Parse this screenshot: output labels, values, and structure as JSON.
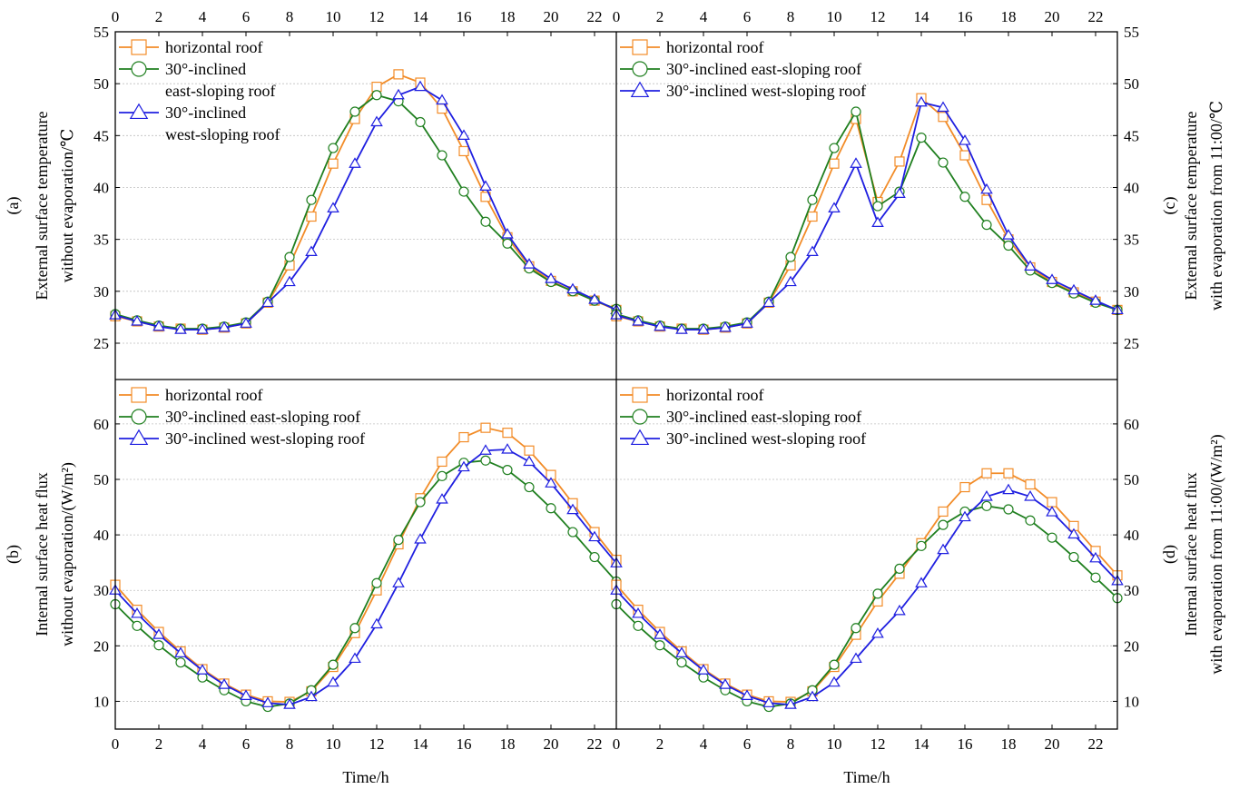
{
  "colors": {
    "horizontal": "#F28C28",
    "east": "#1F7F1F",
    "west": "#1F1FE0",
    "grid": "#BFBFBF"
  },
  "xlabel": "Time/h",
  "chart_data": [
    {
      "id": "a",
      "type": "line",
      "ylabel_tag": "(a)",
      "ylabel_lines": [
        "External surface temperature",
        "without evaporation/℃"
      ],
      "xlim": [
        0,
        23
      ],
      "ylim": [
        21.5,
        55
      ],
      "xticks": [
        "0",
        "2",
        "4",
        "6",
        "8",
        "10",
        "12",
        "14",
        "16",
        "18",
        "20",
        "22"
      ],
      "yticks": [
        "25",
        "30",
        "35",
        "40",
        "45",
        "50",
        "55"
      ],
      "legend_position": "top-left",
      "x": [
        0,
        1,
        2,
        3,
        4,
        5,
        6,
        7,
        8,
        9,
        10,
        11,
        12,
        13,
        14,
        15,
        16,
        17,
        18,
        19,
        20,
        21,
        22,
        23
      ],
      "series": [
        {
          "key": "horizontal",
          "name_lines": [
            "horizontal roof"
          ],
          "values": [
            27.6,
            27.1,
            26.6,
            26.4,
            26.3,
            26.5,
            26.9,
            28.9,
            32.5,
            37.2,
            42.3,
            46.6,
            49.7,
            50.9,
            50.1,
            47.6,
            43.5,
            39.1,
            35.2,
            32.4,
            31.0,
            30.0,
            29.1,
            28.2
          ]
        },
        {
          "key": "east",
          "name_lines": [
            "30°-inclined",
            "east-sloping roof"
          ],
          "values": [
            27.8,
            27.2,
            26.7,
            26.4,
            26.4,
            26.6,
            27.0,
            29.0,
            33.3,
            38.8,
            43.8,
            47.3,
            48.9,
            48.3,
            46.3,
            43.1,
            39.6,
            36.7,
            34.6,
            32.2,
            30.9,
            30.0,
            29.1,
            28.3
          ]
        },
        {
          "key": "west",
          "name_lines": [
            "30°-inclined",
            "west-sloping roof"
          ],
          "values": [
            27.7,
            27.1,
            26.6,
            26.3,
            26.3,
            26.5,
            26.9,
            28.9,
            30.9,
            33.8,
            38.0,
            42.3,
            46.3,
            48.9,
            49.7,
            48.4,
            45.0,
            40.1,
            35.5,
            32.6,
            31.2,
            30.2,
            29.2,
            28.2
          ]
        }
      ]
    },
    {
      "id": "c",
      "type": "line",
      "ylabel_tag": "(c)",
      "ylabel_lines": [
        "External surface temperature",
        "with evaporation from 11:00/℃"
      ],
      "xlim": [
        0,
        23
      ],
      "ylim": [
        21.5,
        55
      ],
      "xticks": [
        "0",
        "2",
        "4",
        "6",
        "8",
        "10",
        "12",
        "14",
        "16",
        "18",
        "20",
        "22"
      ],
      "yticks": [
        "25",
        "30",
        "35",
        "40",
        "45",
        "50",
        "55"
      ],
      "legend_position": "top-left",
      "x": [
        0,
        1,
        2,
        3,
        4,
        5,
        6,
        7,
        8,
        9,
        10,
        11,
        12,
        13,
        14,
        15,
        16,
        17,
        18,
        19,
        20,
        21,
        22,
        23
      ],
      "series": [
        {
          "key": "horizontal",
          "name_lines": [
            "horizontal roof"
          ],
          "values": [
            27.6,
            27.1,
            26.6,
            26.4,
            26.3,
            26.5,
            26.9,
            28.9,
            32.5,
            37.2,
            42.3,
            46.6,
            38.6,
            42.5,
            48.6,
            46.8,
            43.1,
            38.8,
            35.0,
            32.3,
            30.9,
            29.9,
            29.0,
            28.2
          ]
        },
        {
          "key": "east",
          "name_lines": [
            "30°-inclined east-sloping roof"
          ],
          "values": [
            27.8,
            27.2,
            26.7,
            26.4,
            26.4,
            26.6,
            27.0,
            29.0,
            33.3,
            38.8,
            43.8,
            47.3,
            38.2,
            39.6,
            44.8,
            42.4,
            39.1,
            36.4,
            34.4,
            32.0,
            30.8,
            29.8,
            28.9,
            28.2
          ]
        },
        {
          "key": "west",
          "name_lines": [
            "30°-inclined west-sloping roof"
          ],
          "values": [
            27.7,
            27.1,
            26.6,
            26.3,
            26.3,
            26.5,
            26.9,
            28.9,
            30.9,
            33.8,
            38.0,
            42.3,
            36.6,
            39.4,
            48.2,
            47.7,
            44.5,
            39.8,
            35.4,
            32.4,
            31.1,
            30.1,
            29.1,
            28.2
          ]
        }
      ]
    },
    {
      "id": "b",
      "type": "line",
      "ylabel_tag": "(b)",
      "ylabel_lines": [
        "Internal surface heat flux",
        "without evaporation/(W/m²)"
      ],
      "xlim": [
        0,
        23
      ],
      "ylim": [
        5,
        68
      ],
      "xticks": [
        "0",
        "2",
        "4",
        "6",
        "8",
        "10",
        "12",
        "14",
        "16",
        "18",
        "20",
        "22"
      ],
      "yticks": [
        "10",
        "20",
        "30",
        "40",
        "50",
        "60"
      ],
      "legend_position": "top-left",
      "x": [
        0,
        1,
        2,
        3,
        4,
        5,
        6,
        7,
        8,
        9,
        10,
        11,
        12,
        13,
        14,
        15,
        16,
        17,
        18,
        19,
        20,
        21,
        22,
        23
      ],
      "series": [
        {
          "key": "horizontal",
          "name_lines": [
            "horizontal roof"
          ],
          "values": [
            31.0,
            26.5,
            22.5,
            19.0,
            15.8,
            13.2,
            11.2,
            10.0,
            9.9,
            11.8,
            16.2,
            22.3,
            30.0,
            38.3,
            46.6,
            53.2,
            57.6,
            59.3,
            58.4,
            55.2,
            50.8,
            45.7,
            40.5,
            35.5
          ]
        },
        {
          "key": "east",
          "name_lines": [
            "30°-inclined east-sloping roof"
          ],
          "values": [
            27.5,
            23.6,
            20.1,
            17.0,
            14.3,
            12.0,
            10.0,
            9.0,
            9.6,
            12.0,
            16.6,
            23.2,
            31.3,
            39.1,
            45.9,
            50.6,
            53.0,
            53.4,
            51.7,
            48.6,
            44.8,
            40.5,
            36.0,
            31.6
          ]
        },
        {
          "key": "west",
          "name_lines": [
            "30°-inclined west-sloping roof"
          ],
          "values": [
            30.0,
            25.8,
            22.0,
            18.7,
            15.6,
            13.0,
            11.0,
            9.7,
            9.4,
            10.8,
            13.4,
            17.7,
            23.9,
            31.3,
            39.2,
            46.4,
            52.2,
            55.2,
            55.4,
            53.2,
            49.3,
            44.5,
            39.6,
            34.9
          ]
        }
      ]
    },
    {
      "id": "d",
      "type": "line",
      "ylabel_tag": "(d)",
      "ylabel_lines": [
        "Internal surface heat flux",
        "with evaporation from 11:00/(W/m²)"
      ],
      "xlim": [
        0,
        23
      ],
      "ylim": [
        5,
        68
      ],
      "xticks": [
        "0",
        "2",
        "4",
        "6",
        "8",
        "10",
        "12",
        "14",
        "16",
        "18",
        "20",
        "22"
      ],
      "yticks": [
        "10",
        "20",
        "30",
        "40",
        "50",
        "60"
      ],
      "legend_position": "top-left",
      "x": [
        0,
        1,
        2,
        3,
        4,
        5,
        6,
        7,
        8,
        9,
        10,
        11,
        12,
        13,
        14,
        15,
        16,
        17,
        18,
        19,
        20,
        21,
        22,
        23
      ],
      "series": [
        {
          "key": "horizontal",
          "name_lines": [
            "horizontal roof"
          ],
          "values": [
            31.0,
            26.5,
            22.5,
            19.0,
            15.8,
            13.2,
            11.2,
            10.0,
            9.9,
            11.8,
            16.2,
            22.0,
            28.0,
            33.0,
            38.5,
            44.2,
            48.6,
            51.1,
            51.1,
            49.1,
            45.9,
            41.6,
            37.1,
            32.7
          ]
        },
        {
          "key": "east",
          "name_lines": [
            "30°-inclined east-sloping roof"
          ],
          "values": [
            27.5,
            23.6,
            20.1,
            17.0,
            14.3,
            12.0,
            10.0,
            9.0,
            9.6,
            12.0,
            16.6,
            23.2,
            29.4,
            33.9,
            38.0,
            41.8,
            44.2,
            45.2,
            44.6,
            42.6,
            39.5,
            36.0,
            32.3,
            28.6
          ]
        },
        {
          "key": "west",
          "name_lines": [
            "30°-inclined west-sloping roof"
          ],
          "values": [
            30.0,
            25.8,
            22.0,
            18.7,
            15.6,
            13.0,
            11.0,
            9.7,
            9.4,
            10.8,
            13.4,
            17.7,
            22.2,
            26.3,
            31.3,
            37.3,
            43.2,
            46.9,
            48.1,
            46.9,
            44.1,
            40.1,
            35.8,
            31.7
          ]
        }
      ]
    }
  ]
}
